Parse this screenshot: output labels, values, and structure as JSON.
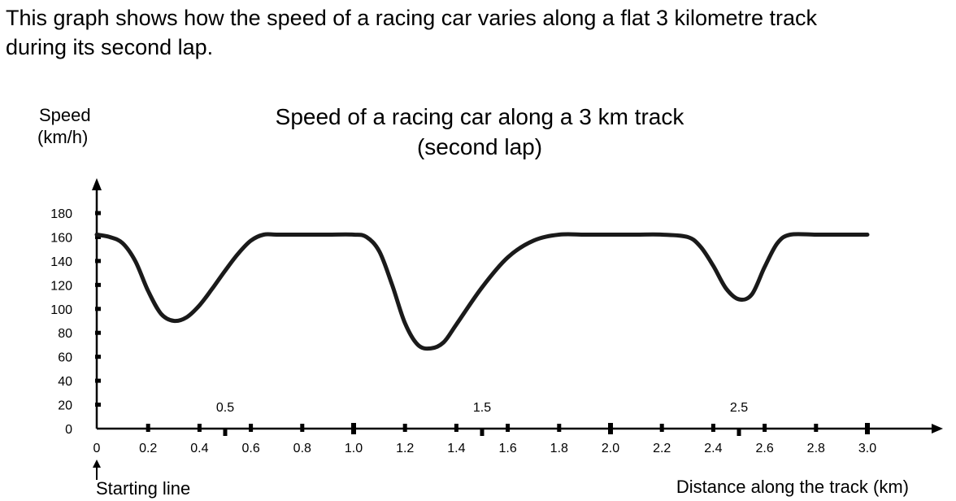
{
  "intro": {
    "line1": "This graph shows how the speed of a racing car varies along a flat 3 kilometre track",
    "line2": "during its second lap."
  },
  "chart_data": {
    "type": "line",
    "title": "Speed of a racing car along a 3 km track",
    "subtitle": "(second lap)",
    "ylabel_line1": "Speed",
    "ylabel_line2": "(km/h)",
    "xlabel": "Distance along the track (km)",
    "start_annotation": "Starting line",
    "xlim": [
      0,
      3.0
    ],
    "ylim": [
      0,
      180
    ],
    "x_ticks": [
      "0",
      "0.2",
      "0.4",
      "0.6",
      "0.8",
      "1.0",
      "1.2",
      "1.4",
      "1.6",
      "1.8",
      "2.0",
      "2.2",
      "2.4",
      "2.6",
      "2.8",
      "3.0"
    ],
    "x_tick_values": [
      0,
      0.2,
      0.4,
      0.6,
      0.8,
      1.0,
      1.2,
      1.4,
      1.6,
      1.8,
      2.0,
      2.2,
      2.4,
      2.6,
      2.8,
      3.0
    ],
    "x_half_ticks": [
      "0.5",
      "1.5",
      "2.5"
    ],
    "x_half_tick_values": [
      0.5,
      1.5,
      2.5
    ],
    "y_ticks": [
      "0",
      "20",
      "40",
      "60",
      "80",
      "100",
      "120",
      "140",
      "160",
      "180"
    ],
    "y_tick_values": [
      0,
      20,
      40,
      60,
      80,
      100,
      120,
      140,
      160,
      180
    ],
    "grid": false,
    "series": [
      {
        "x": [
          0,
          0.05,
          0.1,
          0.15,
          0.2,
          0.25,
          0.3,
          0.35,
          0.4,
          0.45,
          0.5,
          0.55,
          0.6,
          0.65,
          0.7,
          0.8,
          0.9,
          1.0,
          1.05,
          1.1,
          1.15,
          1.2,
          1.25,
          1.3,
          1.35,
          1.4,
          1.5,
          1.6,
          1.7,
          1.8,
          1.9,
          2.0,
          2.1,
          2.2,
          2.3,
          2.35,
          2.4,
          2.45,
          2.5,
          2.55,
          2.6,
          2.65,
          2.7,
          2.8,
          2.9,
          3.0
        ],
        "y": [
          162,
          160,
          155,
          140,
          115,
          96,
          90,
          93,
          103,
          117,
          132,
          146,
          157,
          162,
          162,
          162,
          162,
          162,
          160,
          148,
          120,
          88,
          70,
          67,
          72,
          87,
          118,
          143,
          157,
          162,
          162,
          162,
          162,
          162,
          160,
          152,
          136,
          117,
          108,
          112,
          135,
          155,
          162,
          162,
          162,
          162
        ]
      }
    ]
  }
}
